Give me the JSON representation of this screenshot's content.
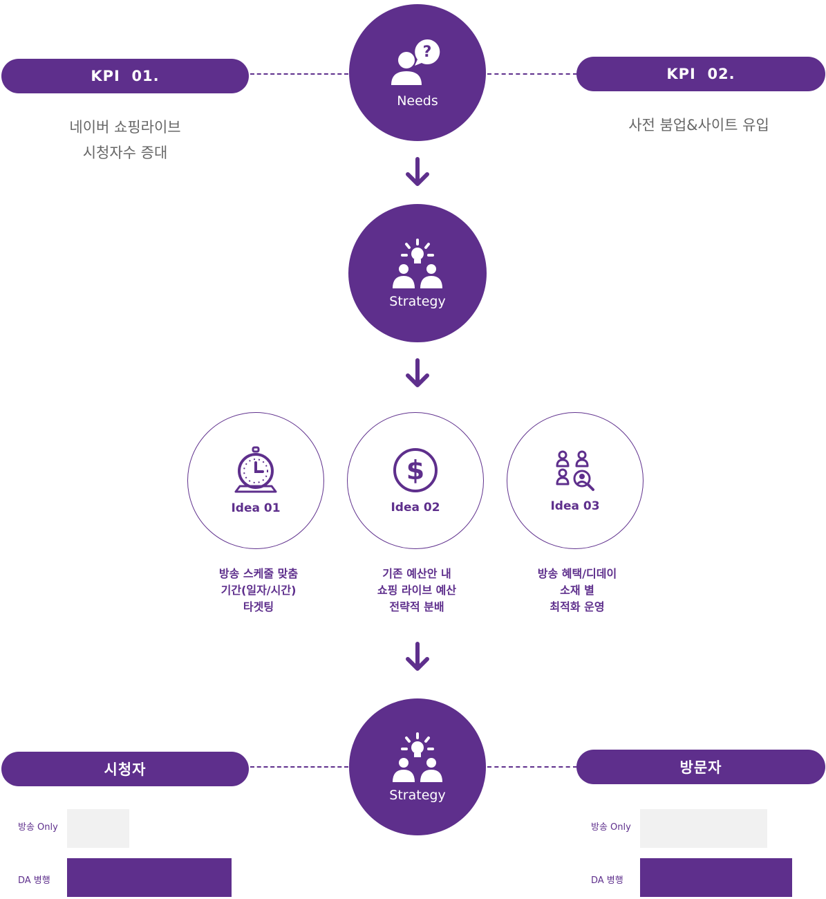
{
  "colors": {
    "purple": "#5e2f8c",
    "gray_text": "#666666",
    "bar_light": "#f1f1f1"
  },
  "top": {
    "kpi_left": {
      "title": "KPI  01.",
      "desc": [
        "네이버 쇼핑라이브",
        "시청자수 증대"
      ]
    },
    "kpi_right": {
      "title": "KPI  02.",
      "desc": [
        "사전 붐업&사이트 유입"
      ]
    },
    "needs": {
      "label": "Needs",
      "icon": "person-question-icon"
    }
  },
  "strategy1": {
    "label": "Strategy",
    "icon": "idea-team-icon"
  },
  "ideas": [
    {
      "label": "Idea 01",
      "icon": "stopwatch-icon",
      "desc": [
        "방송 스케줄 맞춤",
        "기간(일자/시간)",
        "타겟팅"
      ]
    },
    {
      "label": "Idea 02",
      "icon": "dollar-icon",
      "desc": [
        "기존 예산안 내",
        "쇼핑 라이브 예산",
        "전략적 분배"
      ]
    },
    {
      "label": "Idea 03",
      "icon": "audience-target-icon",
      "desc": [
        "방송 혜택/디데이",
        "소재 별",
        "최적화 운영"
      ]
    }
  ],
  "bottom": {
    "strategy2": {
      "label": "Strategy",
      "icon": "idea-team-icon"
    },
    "left": {
      "title": "시청자",
      "rows": [
        {
          "label": "방송 Only",
          "value": 0.25
        },
        {
          "label": "DA 병행",
          "value": 0.66
        }
      ]
    },
    "right": {
      "title": "방문자",
      "rows": [
        {
          "label": "방송 Only",
          "value": 0.51
        },
        {
          "label": "DA 병행",
          "value": 0.61
        }
      ]
    }
  }
}
